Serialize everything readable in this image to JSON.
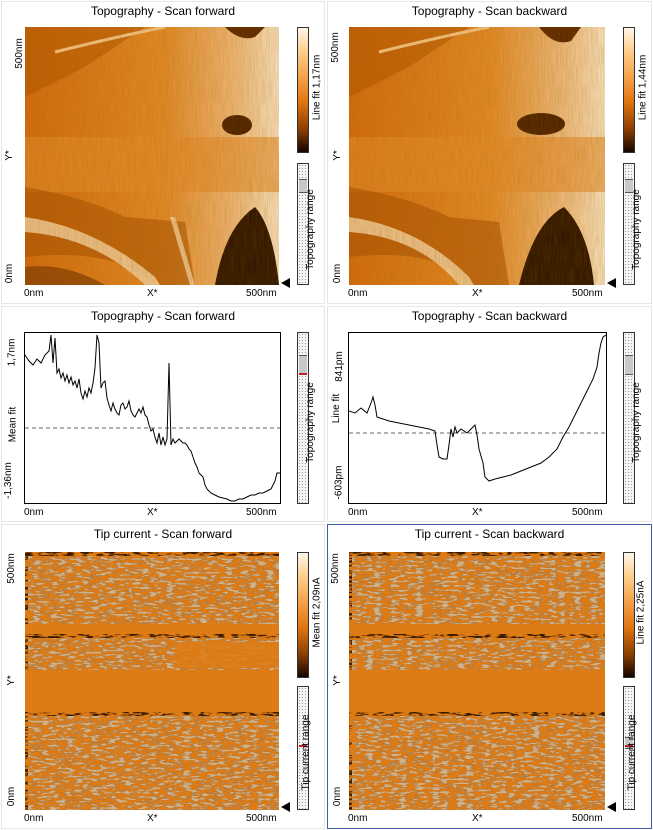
{
  "panels": {
    "topo_fwd": {
      "title": "Topography - Scan forward",
      "y_max": "500nm",
      "y_min": "0nm",
      "y_axis": "Y*",
      "x_min": "0nm",
      "x_axis": "X*",
      "x_max": "500nm",
      "colorbar_label": "Line fit 1,17nm",
      "range_label": "Topography range"
    },
    "topo_bwd": {
      "title": "Topography - Scan backward",
      "y_max": "500nm",
      "y_min": "0nm",
      "y_axis": "Y*",
      "x_min": "0nm",
      "x_axis": "X*",
      "x_max": "500nm",
      "colorbar_label": "Line fit 1,44nm",
      "range_label": "Topography range"
    },
    "line_fwd": {
      "title": "Topography - Scan forward",
      "y_max": "1,7nm",
      "y_min": "-1,36nm",
      "y_axis": "Mean fit",
      "x_min": "0nm",
      "x_axis": "X*",
      "x_max": "500nm",
      "range_label": "Topography range"
    },
    "line_bwd": {
      "title": "Topography - Scan backward",
      "y_max": "841pm",
      "y_min": "-603pm",
      "y_axis": "Line fit",
      "x_min": "0nm",
      "x_axis": "X*",
      "x_max": "500nm",
      "range_label": "Topography range"
    },
    "tip_fwd": {
      "title": "Tip current - Scan forward",
      "y_max": "500nm",
      "y_min": "0nm",
      "y_axis": "Y*",
      "x_min": "0nm",
      "x_axis": "X*",
      "x_max": "500nm",
      "colorbar_label": "Mean fit 2,09nA",
      "range_label": "Tip current range"
    },
    "tip_bwd": {
      "title": "Tip current - Scan backward",
      "y_max": "500nm",
      "y_min": "0nm",
      "y_axis": "Y*",
      "x_min": "0nm",
      "x_axis": "X*",
      "x_max": "500nm",
      "colorbar_label": "Line fit 2,25nA",
      "range_label": "Tip current range"
    }
  },
  "colors": {
    "orange": "#e57b17",
    "selected_border": "#3b5ea8",
    "range_marker": "#c0202a"
  }
}
